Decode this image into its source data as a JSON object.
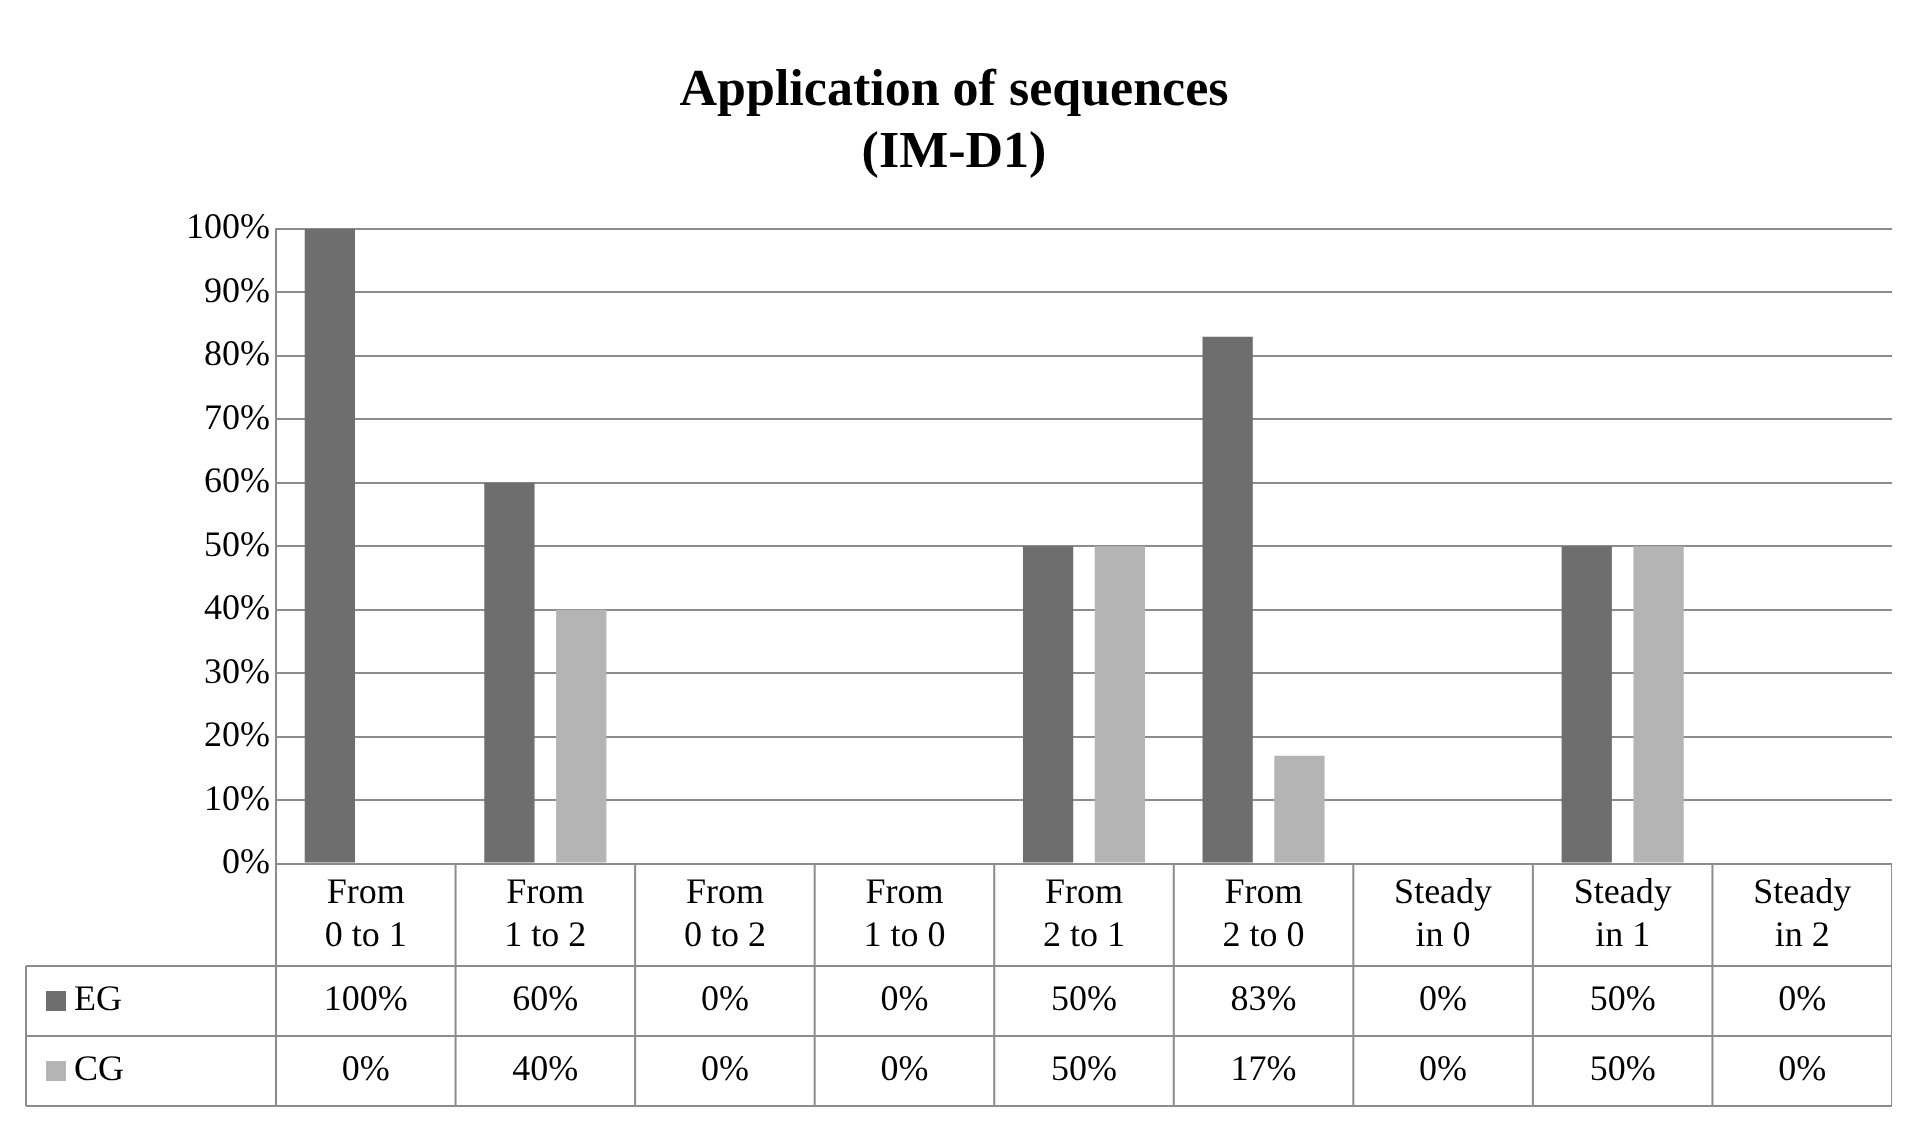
{
  "chart_data": {
    "type": "bar",
    "title": "Application of sequences",
    "subtitle": "(IM-D1)",
    "categories": [
      "From 0 to 1",
      "From 1 to 2",
      "From 0 to 2",
      "From 1 to 0",
      "From 2 to 1",
      "From 2 to 0",
      "Steady in 0",
      "Steady in 1",
      "Steady in 2"
    ],
    "series": [
      {
        "name": "EG",
        "color": "#6e6e6e",
        "values": [
          100,
          60,
          0,
          0,
          50,
          83,
          0,
          50,
          0
        ],
        "value_labels": [
          "100%",
          "60%",
          "0%",
          "0%",
          "50%",
          "83%",
          "0%",
          "50%",
          "0%"
        ]
      },
      {
        "name": "CG",
        "color": "#b4b4b4",
        "values": [
          0,
          40,
          0,
          0,
          50,
          17,
          0,
          50,
          0
        ],
        "value_labels": [
          "0%",
          "40%",
          "0%",
          "0%",
          "50%",
          "17%",
          "0%",
          "50%",
          "0%"
        ]
      }
    ],
    "ylim": [
      0,
      100
    ],
    "yticks": [
      {
        "value": 0,
        "label": "0%"
      },
      {
        "value": 10,
        "label": "10%"
      },
      {
        "value": 20,
        "label": "20%"
      },
      {
        "value": 30,
        "label": "30%"
      },
      {
        "value": 40,
        "label": "40%"
      },
      {
        "value": 50,
        "label": "50%"
      },
      {
        "value": 60,
        "label": "60%"
      },
      {
        "value": 70,
        "label": "70%"
      },
      {
        "value": 80,
        "label": "80%"
      },
      {
        "value": 90,
        "label": "90%"
      },
      {
        "value": 100,
        "label": "100%"
      }
    ],
    "grid": "y",
    "legend": "bottom"
  }
}
